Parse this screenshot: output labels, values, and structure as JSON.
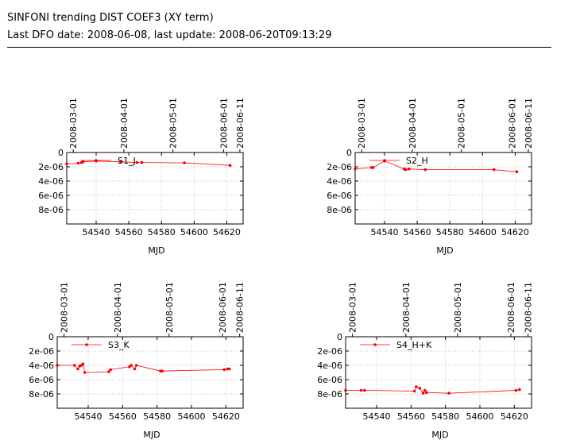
{
  "header": {
    "title": "SINFONI trending DIST COEF3 (XY term)",
    "subtitle": "Last DFO date: 2008-06-08, last update: 2008-06-20T09:13:29"
  },
  "chart_data": [
    {
      "type": "line",
      "xlabel": "MJD",
      "xlim": [
        54522,
        54630
      ],
      "ylim": [
        0,
        1e-05
      ],
      "y_inverted": true,
      "x_ticks": [
        54540,
        54560,
        54580,
        54600,
        54620
      ],
      "x_tick_labels": [
        "54540",
        "54560",
        "54580",
        "54600",
        "54620"
      ],
      "y_ticks": [
        0,
        2e-06,
        4e-06,
        6e-06,
        8e-06
      ],
      "y_tick_labels": [
        "0",
        "2e-06",
        "4e-06",
        "6e-06",
        "8e-06"
      ],
      "top_ticks": [
        54526,
        54557,
        54587,
        54618,
        54628
      ],
      "top_tick_labels": [
        "2008-03-01",
        "2008-04-01",
        "2008-05-01",
        "2008-06-01",
        "2008-06-11"
      ],
      "grid": true,
      "legend_position": "top-left",
      "color": "#ff0000",
      "series": [
        {
          "name": "S1_J",
          "x": [
            54522,
            54529,
            54531,
            54532,
            54540,
            54555,
            54565,
            54568,
            54594,
            54622
          ],
          "y": [
            1.6e-06,
            1.5e-06,
            1.4e-06,
            1.3e-06,
            1.2e-06,
            1.3e-06,
            1.4e-06,
            1.4e-06,
            1.45e-06,
            1.8e-06
          ]
        }
      ]
    },
    {
      "type": "line",
      "xlabel": "MJD",
      "xlim": [
        54522,
        54630
      ],
      "ylim": [
        0,
        1e-05
      ],
      "y_inverted": true,
      "x_ticks": [
        54540,
        54560,
        54580,
        54600,
        54620
      ],
      "x_tick_labels": [
        "54540",
        "54560",
        "54580",
        "54600",
        "54620"
      ],
      "y_ticks": [
        0,
        2e-06,
        4e-06,
        6e-06,
        8e-06
      ],
      "y_tick_labels": [
        "0",
        "2e-06",
        "4e-06",
        "6e-06",
        "8e-06"
      ],
      "top_ticks": [
        54526,
        54557,
        54587,
        54618,
        54628
      ],
      "top_tick_labels": [
        "2008-03-01",
        "2008-04-01",
        "2008-05-01",
        "2008-06-01",
        "2008-06-11"
      ],
      "grid": true,
      "legend_position": "top-left",
      "color": "#ff0000",
      "series": [
        {
          "name": "S2_H",
          "x": [
            54522,
            54532,
            54533,
            54540,
            54552,
            54553,
            54555,
            54565,
            54607,
            54621
          ],
          "y": [
            2.3e-06,
            2.1e-06,
            2.1e-06,
            1.2e-06,
            2.3e-06,
            2.4e-06,
            2.3e-06,
            2.4e-06,
            2.4e-06,
            2.7e-06
          ]
        }
      ]
    },
    {
      "type": "line",
      "xlabel": "MJD",
      "xlim": [
        54522,
        54630
      ],
      "ylim": [
        0,
        1e-05
      ],
      "y_inverted": true,
      "x_ticks": [
        54540,
        54560,
        54580,
        54600,
        54620
      ],
      "x_tick_labels": [
        "54540",
        "54560",
        "54580",
        "54600",
        "54620"
      ],
      "y_ticks": [
        0,
        2e-06,
        4e-06,
        6e-06,
        8e-06
      ],
      "y_tick_labels": [
        "0",
        "2e-06",
        "4e-06",
        "6e-06",
        "8e-06"
      ],
      "top_ticks": [
        54526,
        54557,
        54587,
        54618,
        54628
      ],
      "top_tick_labels": [
        "2008-03-01",
        "2008-04-01",
        "2008-05-01",
        "2008-06-01",
        "2008-06-11"
      ],
      "grid": true,
      "legend_position": "top-left",
      "color": "#ff0000",
      "series": [
        {
          "name": "S3_K",
          "x": [
            54522,
            54532,
            54534,
            54535,
            54536,
            54537,
            54538,
            54552,
            54553,
            54564,
            54565,
            54567,
            54568,
            54582,
            54583,
            54619,
            54621,
            54622
          ],
          "y": [
            4e-06,
            4e-06,
            4.5e-06,
            4.1e-06,
            4e-06,
            3.8e-06,
            5e-06,
            4.9e-06,
            4.6e-06,
            4.2e-06,
            4e-06,
            4.5e-06,
            4e-06,
            4.8e-06,
            4.8e-06,
            4.6e-06,
            4.5e-06,
            4.5e-06
          ]
        }
      ]
    },
    {
      "type": "line",
      "xlabel": "MJD",
      "xlim": [
        54522,
        54630
      ],
      "ylim": [
        0,
        1e-05
      ],
      "y_inverted": true,
      "x_ticks": [
        54540,
        54560,
        54580,
        54600,
        54620
      ],
      "x_tick_labels": [
        "54540",
        "54560",
        "54580",
        "54600",
        "54620"
      ],
      "y_ticks": [
        0,
        2e-06,
        4e-06,
        6e-06,
        8e-06
      ],
      "y_tick_labels": [
        "0",
        "2e-06",
        "4e-06",
        "6e-06",
        "8e-06"
      ],
      "top_ticks": [
        54526,
        54557,
        54587,
        54618,
        54628
      ],
      "top_tick_labels": [
        "2008-03-01",
        "2008-04-01",
        "2008-05-01",
        "2008-06-01",
        "2008-06-11"
      ],
      "grid": true,
      "legend_position": "top-left",
      "color": "#ff0000",
      "series": [
        {
          "name": "S4_H+K",
          "x": [
            54522,
            54531,
            54533,
            54562,
            54563,
            54565,
            54567,
            54568,
            54569,
            54582,
            54621,
            54623
          ],
          "y": [
            7.5e-06,
            7.5e-06,
            7.5e-06,
            7.6e-06,
            7e-06,
            7.2e-06,
            7.9e-06,
            7.5e-06,
            7.8e-06,
            7.9e-06,
            7.5e-06,
            7.4e-06
          ]
        }
      ]
    }
  ]
}
